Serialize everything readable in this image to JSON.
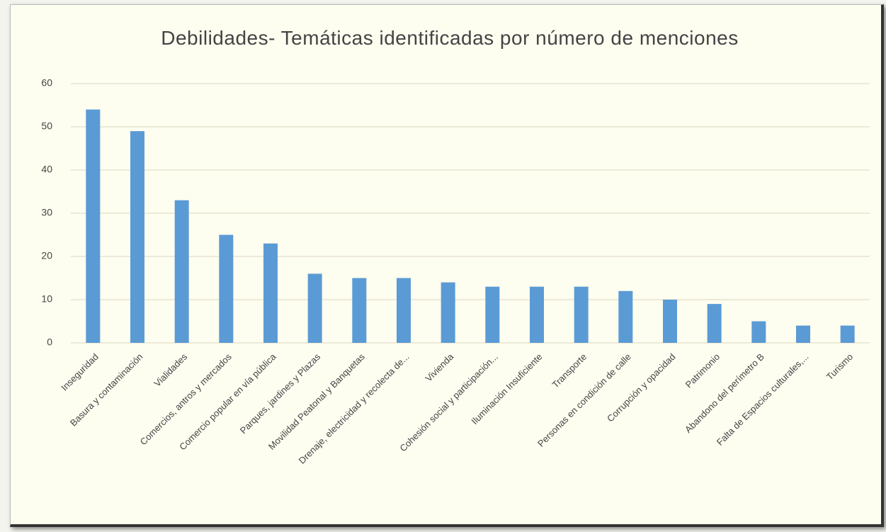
{
  "chart_data": {
    "type": "bar",
    "title": "Debilidades- Temáticas identificadas por número de menciones",
    "categories": [
      "Inseguridad",
      "Basura y contaminación",
      "Vialidades",
      "Comercios, antros y mercados",
      "Comercio popular en vía pública",
      "Parques, jardines y Plazas",
      "Movilidad Peatonal y Banquetas",
      "Drenaje, electricidad y recolecta de...",
      "Vivienda",
      "Cohesión social y participación...",
      "Iluminación Insuficiente",
      "Transporte",
      "Personas en condición de calle",
      "Corrupción y opacidad",
      "Patrimonio",
      "Abandono del perímetro B",
      "Falta de Espacios culturales,...",
      "Turismo"
    ],
    "values": [
      54,
      49,
      33,
      25,
      23,
      16,
      15,
      15,
      14,
      13,
      13,
      13,
      12,
      10,
      9,
      5,
      4,
      4
    ],
    "color": "#5b9bd5",
    "ylim": [
      0,
      60
    ],
    "yticks": [
      0,
      10,
      20,
      30,
      40,
      50,
      60
    ],
    "grid": true
  }
}
